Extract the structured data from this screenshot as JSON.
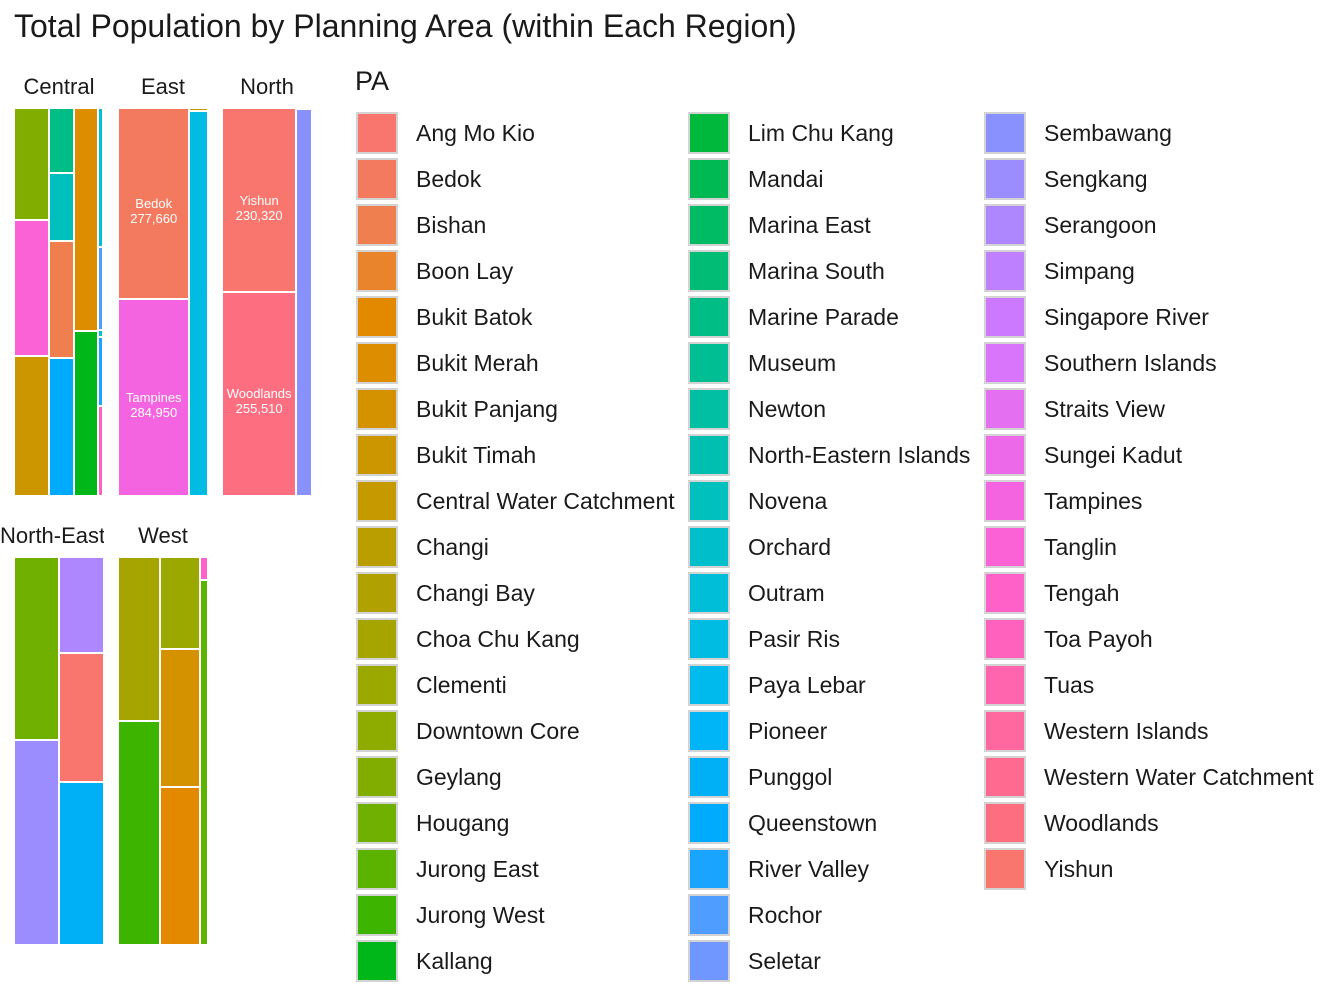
{
  "chart_data": {
    "type": "treemap",
    "title": "Total Population by Planning Area (within Each Region)",
    "legend": {
      "title": "PA",
      "placement": "right",
      "entries": [
        {
          "label": "Ang Mo Kio",
          "color": "#F8766D"
        },
        {
          "label": "Bedok",
          "color": "#F47A5F"
        },
        {
          "label": "Bishan",
          "color": "#EF7F4F"
        },
        {
          "label": "Boon Lay",
          "color": "#E9842C"
        },
        {
          "label": "Bukit Batok",
          "color": "#E38900"
        },
        {
          "label": "Bukit Merah",
          "color": "#DC8D00"
        },
        {
          "label": "Bukit Panjang",
          "color": "#D49200"
        },
        {
          "label": "Bukit Timah",
          "color": "#CC9600"
        },
        {
          "label": "Central Water Catchment",
          "color": "#C49A00"
        },
        {
          "label": "Changi",
          "color": "#BA9E00"
        },
        {
          "label": "Changi Bay",
          "color": "#B0A100"
        },
        {
          "label": "Choa Chu Kang",
          "color": "#A6A500"
        },
        {
          "label": "Clementi",
          "color": "#9AA800"
        },
        {
          "label": "Downtown Core",
          "color": "#8EAB00"
        },
        {
          "label": "Geylang",
          "color": "#80AD00"
        },
        {
          "label": "Hougang",
          "color": "#70B000"
        },
        {
          "label": "Jurong East",
          "color": "#5BB300"
        },
        {
          "label": "Jurong West",
          "color": "#3DB500"
        },
        {
          "label": "Kallang",
          "color": "#00B71A"
        },
        {
          "label": "Lim Chu Kang",
          "color": "#00B83C"
        },
        {
          "label": "Mandai",
          "color": "#00B952"
        },
        {
          "label": "Marina East",
          "color": "#00BA64"
        },
        {
          "label": "Marina South",
          "color": "#00BC75"
        },
        {
          "label": "Marine Parade",
          "color": "#00BD85"
        },
        {
          "label": "Museum",
          "color": "#00BE94"
        },
        {
          "label": "Newton",
          "color": "#00BFA2"
        },
        {
          "label": "North-Eastern Islands",
          "color": "#00BFB0"
        },
        {
          "label": "Novena",
          "color": "#00C0BD"
        },
        {
          "label": "Orchard",
          "color": "#00BFCA"
        },
        {
          "label": "Outram",
          "color": "#00BED7"
        },
        {
          "label": "Pasir Ris",
          "color": "#00BCE3"
        },
        {
          "label": "Paya Lebar",
          "color": "#00B9ED"
        },
        {
          "label": "Pioneer",
          "color": "#00B5F7"
        },
        {
          "label": "Punggol",
          "color": "#00B0F6"
        },
        {
          "label": "Queenstown",
          "color": "#00ABFD"
        },
        {
          "label": "River Valley",
          "color": "#19A5FF"
        },
        {
          "label": "Rochor",
          "color": "#4F9EFF"
        },
        {
          "label": "Seletar",
          "color": "#6F97FF"
        },
        {
          "label": "Sembawang",
          "color": "#8990FF"
        },
        {
          "label": "Sengkang",
          "color": "#9C8DFF"
        },
        {
          "label": "Serangoon",
          "color": "#AE87FF"
        },
        {
          "label": "Simpang",
          "color": "#BE80FF"
        },
        {
          "label": "Singapore River",
          "color": "#CC79FF"
        },
        {
          "label": "Southern Islands",
          "color": "#D975FA"
        },
        {
          "label": "Straits View",
          "color": "#E46FF1"
        },
        {
          "label": "Sungei Kadut",
          "color": "#EC69E9"
        },
        {
          "label": "Tampines",
          "color": "#F464E0"
        },
        {
          "label": "Tanglin",
          "color": "#FA62D5"
        },
        {
          "label": "Tengah",
          "color": "#FF61C9"
        },
        {
          "label": "Toa Payoh",
          "color": "#FF62BC"
        },
        {
          "label": "Tuas",
          "color": "#FF64AE"
        },
        {
          "label": "Western Islands",
          "color": "#FF679F"
        },
        {
          "label": "Western Water Catchment",
          "color": "#FF6B90"
        },
        {
          "label": "Woodlands",
          "color": "#FC6E80"
        },
        {
          "label": "Yishun",
          "color": "#F8766D"
        }
      ]
    },
    "facets": [
      {
        "region": "Central",
        "label": "Central",
        "columns": [
          {
            "tiles": [
              {
                "pa": "Geylang",
                "value": 111000
              },
              {
                "pa": "Tanglin",
                "value": 136000
              },
              {
                "pa": "Bukit Timah",
                "value": 139000
              }
            ]
          },
          {
            "tiles": [
              {
                "pa": "Marine Parade",
                "value": 46000
              },
              {
                "pa": "Novena",
                "value": 48000
              },
              {
                "pa": "Bishan",
                "value": 83000
              },
              {
                "pa": "Queenstown",
                "value": 98000
              }
            ]
          },
          {
            "tiles": [
              {
                "pa": "Bukit Merah",
                "value": 149000
              },
              {
                "pa": "Kallang",
                "value": 110000
              }
            ]
          },
          {
            "tiles": [
              {
                "pa": "Outram",
                "value": 20000
              },
              {
                "pa": "Rochor",
                "value": 12000
              },
              {
                "pa": "Orchard",
                "value": 1000
              },
              {
                "pa": "River Valley",
                "value": 10000
              },
              {
                "pa": "Toa Payoh",
                "value": 13000
              }
            ]
          },
          {
            "tiles": [
              {
                "pa": "Downtown Core",
                "value": 3000
              },
              {
                "pa": "Singapore River",
                "value": 3000
              },
              {
                "pa": "Newton",
                "value": 8000
              }
            ]
          }
        ]
      },
      {
        "region": "East",
        "label": "East",
        "columns": [
          {
            "tiles": [
              {
                "pa": "Bedok",
                "value": 277660,
                "label": "Bedok\n277,660"
              },
              {
                "pa": "Tampines",
                "value": 284950,
                "label": "Tampines\n284,950"
              }
            ]
          },
          {
            "tiles": [
              {
                "pa": "Changi",
                "value": 1000
              },
              {
                "pa": "Pasir Ris",
                "value": 145000
              }
            ]
          }
        ]
      },
      {
        "region": "North",
        "label": "North",
        "columns": [
          {
            "tiles": [
              {
                "pa": "Yishun",
                "value": 230320,
                "label": "Yishun\n230,320"
              },
              {
                "pa": "Woodlands",
                "value": 255510,
                "label": "Woodlands\n255,510"
              }
            ]
          },
          {
            "tiles": [
              {
                "pa": "Lim Chu Kang",
                "value": 200
              },
              {
                "pa": "Sembawang",
                "value": 100000
              }
            ]
          },
          {
            "tiles": [
              {
                "pa": "Sungei Kadut",
                "value": 600
              },
              {
                "pa": "Sembawang",
                "value": 2000
              }
            ]
          }
        ]
      },
      {
        "region": "North-East",
        "label": "North-East",
        "columns": [
          {
            "tiles": [
              {
                "pa": "Hougang",
                "value": 227000
              },
              {
                "pa": "Sengkang",
                "value": 253000
              }
            ]
          },
          {
            "tiles": [
              {
                "pa": "Serangoon",
                "value": 116000
              },
              {
                "pa": "Ang Mo Kio",
                "value": 157000
              },
              {
                "pa": "Punggol",
                "value": 197000
              }
            ]
          }
        ]
      },
      {
        "region": "West",
        "label": "West",
        "columns": [
          {
            "tiles": [
              {
                "pa": "Choa Chu Kang",
                "value": 178000
              },
              {
                "pa": "Jurong West",
                "value": 242000
              }
            ]
          },
          {
            "tiles": [
              {
                "pa": "Clementi",
                "value": 92000
              },
              {
                "pa": "Bukit Panjang",
                "value": 139000
              },
              {
                "pa": "Bukit Batok",
                "value": 158000
              }
            ]
          },
          {
            "tiles": [
              {
                "pa": "Tengah",
                "value": 5000
              },
              {
                "pa": "Jurong East",
                "value": 79000
              }
            ]
          }
        ]
      }
    ]
  }
}
